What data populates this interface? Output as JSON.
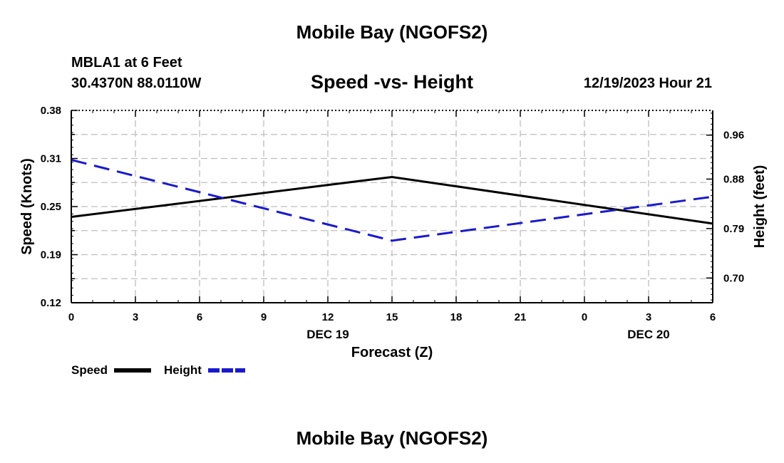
{
  "header": {
    "title": "Mobile Bay (NGOFS2)",
    "station": "MBLA1 at 6 Feet",
    "coordinates": "30.4370N  88.0110W",
    "subtitle": "Speed -vs- Height",
    "datetime": "12/19/2023 Hour 21"
  },
  "footer": {
    "title": "Mobile Bay (NGOFS2)"
  },
  "colors": {
    "speed": "#000000",
    "height": "#1a1acc",
    "grid": "#bdbdbd"
  },
  "chart_data": {
    "type": "line",
    "title": "Speed -vs- Height",
    "xlabel": "Forecast (Z)",
    "ylabel": "Speed (Knots)",
    "y2label": "Height (feet)",
    "x_unit": "forecast hour from 12/19 00Z",
    "xlim": [
      0,
      30
    ],
    "x_tick_labels": [
      "0",
      "3",
      "6",
      "9",
      "12",
      "15",
      "18",
      "21",
      "0",
      "3",
      "6"
    ],
    "date_labels": [
      {
        "text": "DEC 19",
        "at_hour": 12
      },
      {
        "text": "DEC 20",
        "at_hour": 27
      }
    ],
    "ylim": [
      0.12,
      0.38
    ],
    "y_ticks": [
      "0.12",
      "0.19",
      "0.25",
      "0.31",
      "0.38"
    ],
    "y2lim": [
      0.655,
      1.005
    ],
    "y2_ticks": [
      "0.70",
      "0.79",
      "0.88",
      "0.96"
    ],
    "grid": true,
    "legend_position": "bottom-left",
    "series": [
      {
        "name": "Speed",
        "axis": "left",
        "style": "solid",
        "x": [
          0,
          15,
          30
        ],
        "y": [
          0.236,
          0.29,
          0.227
        ]
      },
      {
        "name": "Height",
        "axis": "right",
        "style": "dashed",
        "x": [
          0,
          15,
          30
        ],
        "y": [
          0.915,
          0.768,
          0.848
        ]
      }
    ]
  }
}
